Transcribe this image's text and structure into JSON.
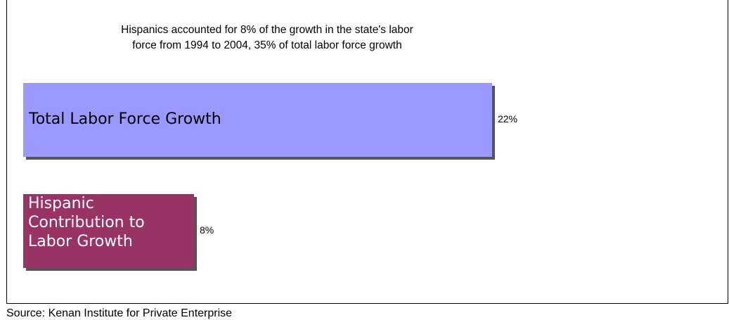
{
  "chart_data": {
    "type": "bar",
    "orientation": "horizontal",
    "title": "Hispanics accounted for 8% of the growth in the state's labor\n  force from 1994 to 2004, 35% of total labor force growth",
    "categories": [
      "Total Labor Force Growth",
      "Hispanic\nContribution to\nLabor Growth"
    ],
    "values": [
      22,
      8
    ],
    "value_labels": [
      "22%",
      "8%"
    ],
    "colors": [
      "#9999ff",
      "#993366"
    ],
    "label_colors": [
      "#000000",
      "#ffffff"
    ],
    "xlim": [
      0,
      22
    ],
    "grid": false,
    "legend": "none"
  },
  "source": "Source: Kenan Institute for Private Enterprise"
}
